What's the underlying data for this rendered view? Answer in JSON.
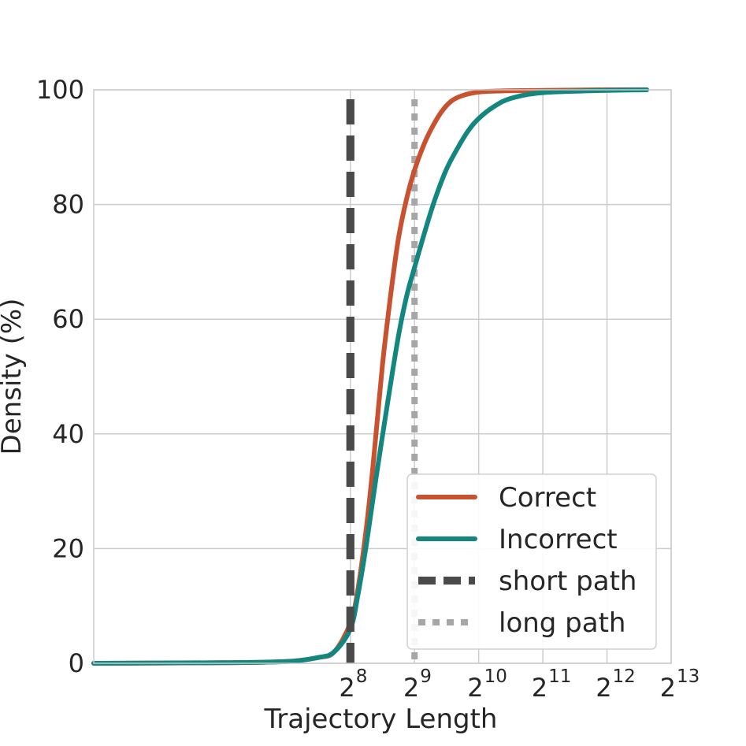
{
  "chart_data": {
    "type": "line",
    "xlabel": "Trajectory Length",
    "ylabel": "Density (%)",
    "x_scale": "log2",
    "xlim": [
      16,
      8192
    ],
    "ylim": [
      0,
      100
    ],
    "grid": true,
    "legend_position": "lower-right",
    "x_ticks": [
      {
        "value": 256,
        "base": "2",
        "exp": "8"
      },
      {
        "value": 512,
        "base": "2",
        "exp": "9"
      },
      {
        "value": 1024,
        "base": "2",
        "exp": "10"
      },
      {
        "value": 2048,
        "base": "2",
        "exp": "11"
      },
      {
        "value": 4096,
        "base": "2",
        "exp": "12"
      },
      {
        "value": 8192,
        "base": "2",
        "exp": "13"
      }
    ],
    "y_ticks": [
      "0",
      "20",
      "40",
      "60",
      "80",
      "100"
    ],
    "series": [
      {
        "name": "Correct",
        "color": "#c8522f",
        "style": "solid",
        "x": [
          16,
          64,
          128,
          181,
          215,
          256,
          278,
          305,
          330,
          362,
          395,
          430,
          470,
          512,
          560,
          610,
          680,
          760,
          860,
          1024,
          1300,
          2048,
          4096,
          6300
        ],
        "y": [
          0,
          0.1,
          0.3,
          1,
          2,
          7,
          13,
          24,
          36,
          52,
          64,
          74,
          81,
          86,
          90,
          93,
          96,
          98,
          99,
          99.6,
          99.8,
          99.9,
          100,
          100
        ]
      },
      {
        "name": "Incorrect",
        "color": "#12867f",
        "style": "solid",
        "x": [
          16,
          64,
          128,
          181,
          215,
          256,
          278,
          305,
          340,
          385,
          430,
          470,
          512,
          580,
          640,
          720,
          820,
          920,
          1024,
          1200,
          1448,
          2048,
          4096,
          6300
        ],
        "y": [
          0,
          0.1,
          0.3,
          1,
          2,
          6,
          12,
          21,
          33,
          46,
          57,
          64,
          69,
          76,
          81,
          86,
          90,
          93,
          95,
          97,
          98.5,
          99.5,
          99.9,
          100
        ]
      },
      {
        "name": "short path",
        "color": "#4a4a4a",
        "style": "dashed",
        "vline": 256
      },
      {
        "name": "long path",
        "color": "#a6a6a6",
        "style": "dotted",
        "vline": 512
      }
    ]
  }
}
